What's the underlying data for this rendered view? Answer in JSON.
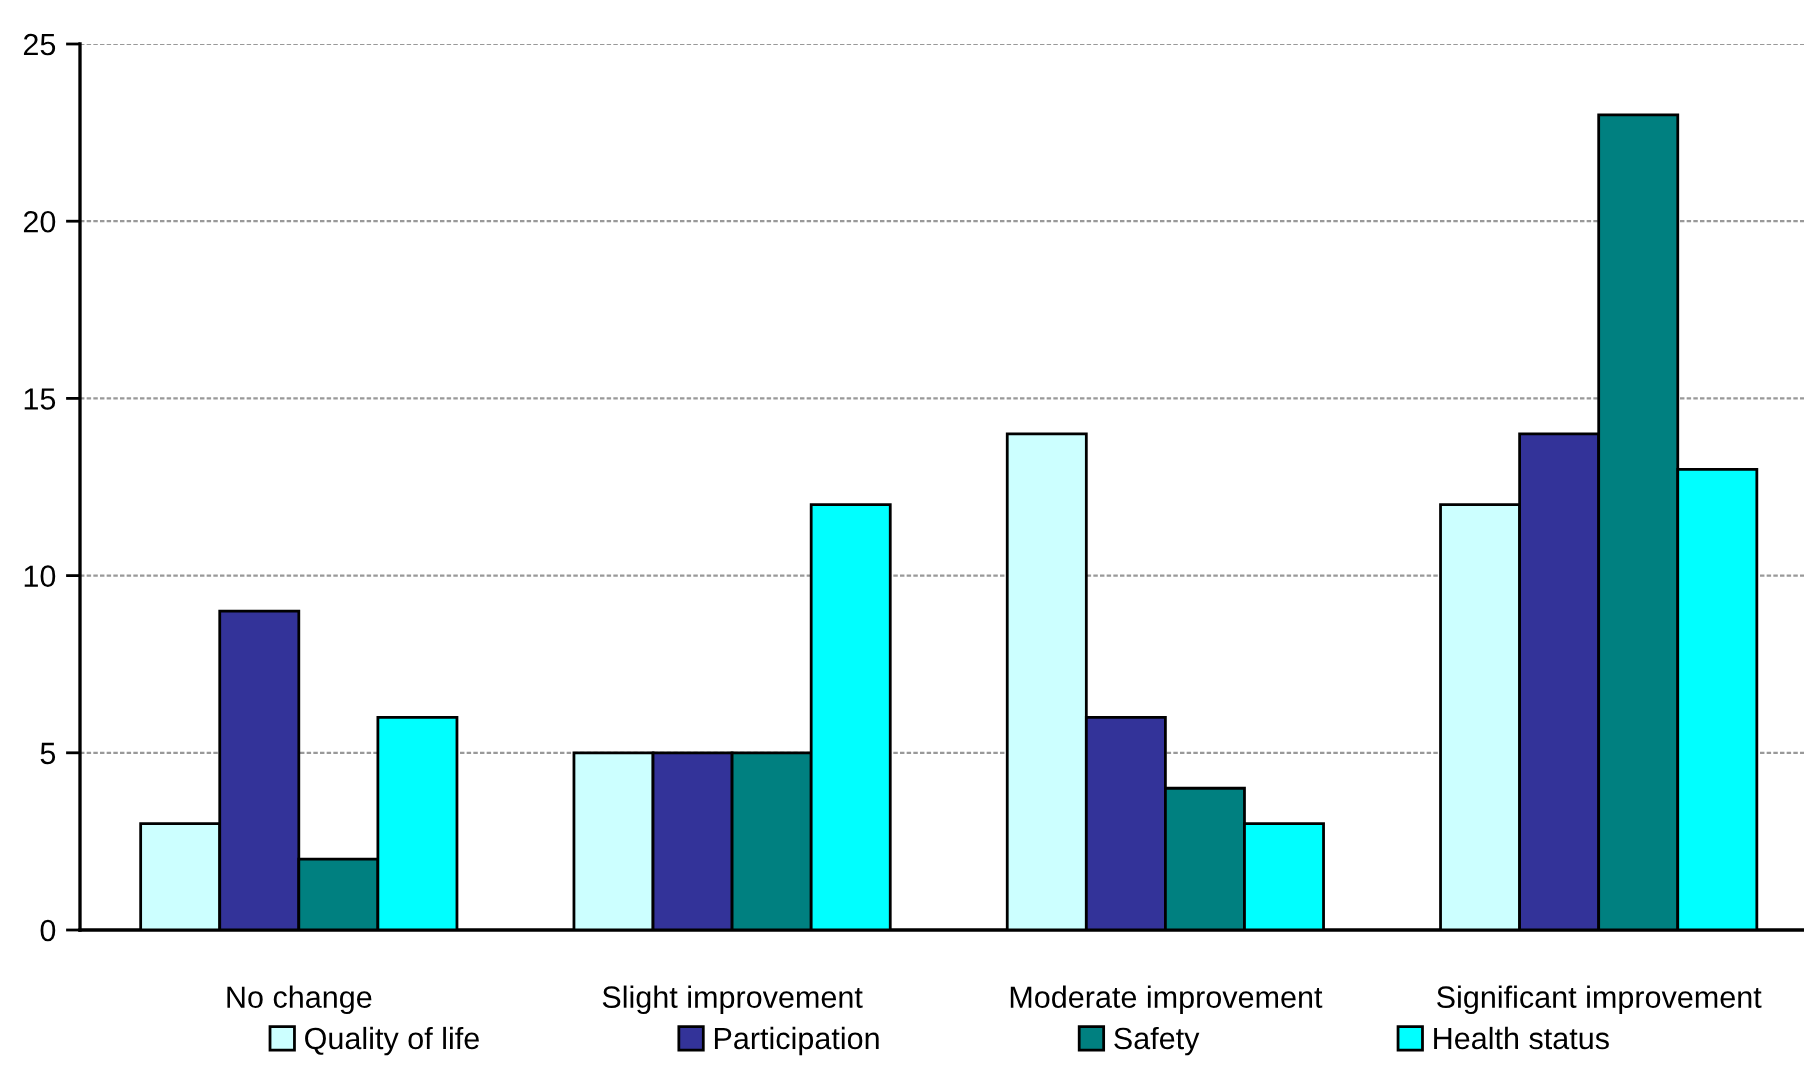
{
  "chart_data": {
    "type": "bar",
    "categories": [
      "No change",
      "Slight improvement",
      "Moderate improvement",
      "Significant improvement"
    ],
    "series": [
      {
        "name": "Quality of life",
        "color": "#ccffff",
        "values": [
          3,
          5,
          14,
          12
        ]
      },
      {
        "name": "Participation",
        "color": "#333399",
        "values": [
          9,
          5,
          6,
          14
        ]
      },
      {
        "name": "Safety",
        "color": "#008080",
        "values": [
          2,
          5,
          4,
          23
        ]
      },
      {
        "name": "Health status",
        "color": "#00ffff",
        "values": [
          6,
          12,
          3,
          13
        ]
      }
    ],
    "ylim": [
      0,
      25
    ],
    "yticks": [
      0,
      5,
      10,
      15,
      20,
      25
    ],
    "grid": "y",
    "legend": "bottom"
  }
}
